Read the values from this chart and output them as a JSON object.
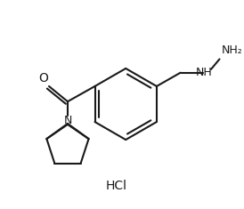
{
  "bg_color": "#ffffff",
  "line_color": "#1a1a1a",
  "text_color": "#1a1a1a",
  "line_width": 1.5,
  "font_size_atom": 9,
  "font_size_hcl": 10,
  "hcl_text": "HCl",
  "nh2_text": "NH₂",
  "nh_text": "NH",
  "o_text": "O",
  "n_text": "N",
  "figsize": [
    2.74,
    2.35
  ],
  "dpi": 100
}
